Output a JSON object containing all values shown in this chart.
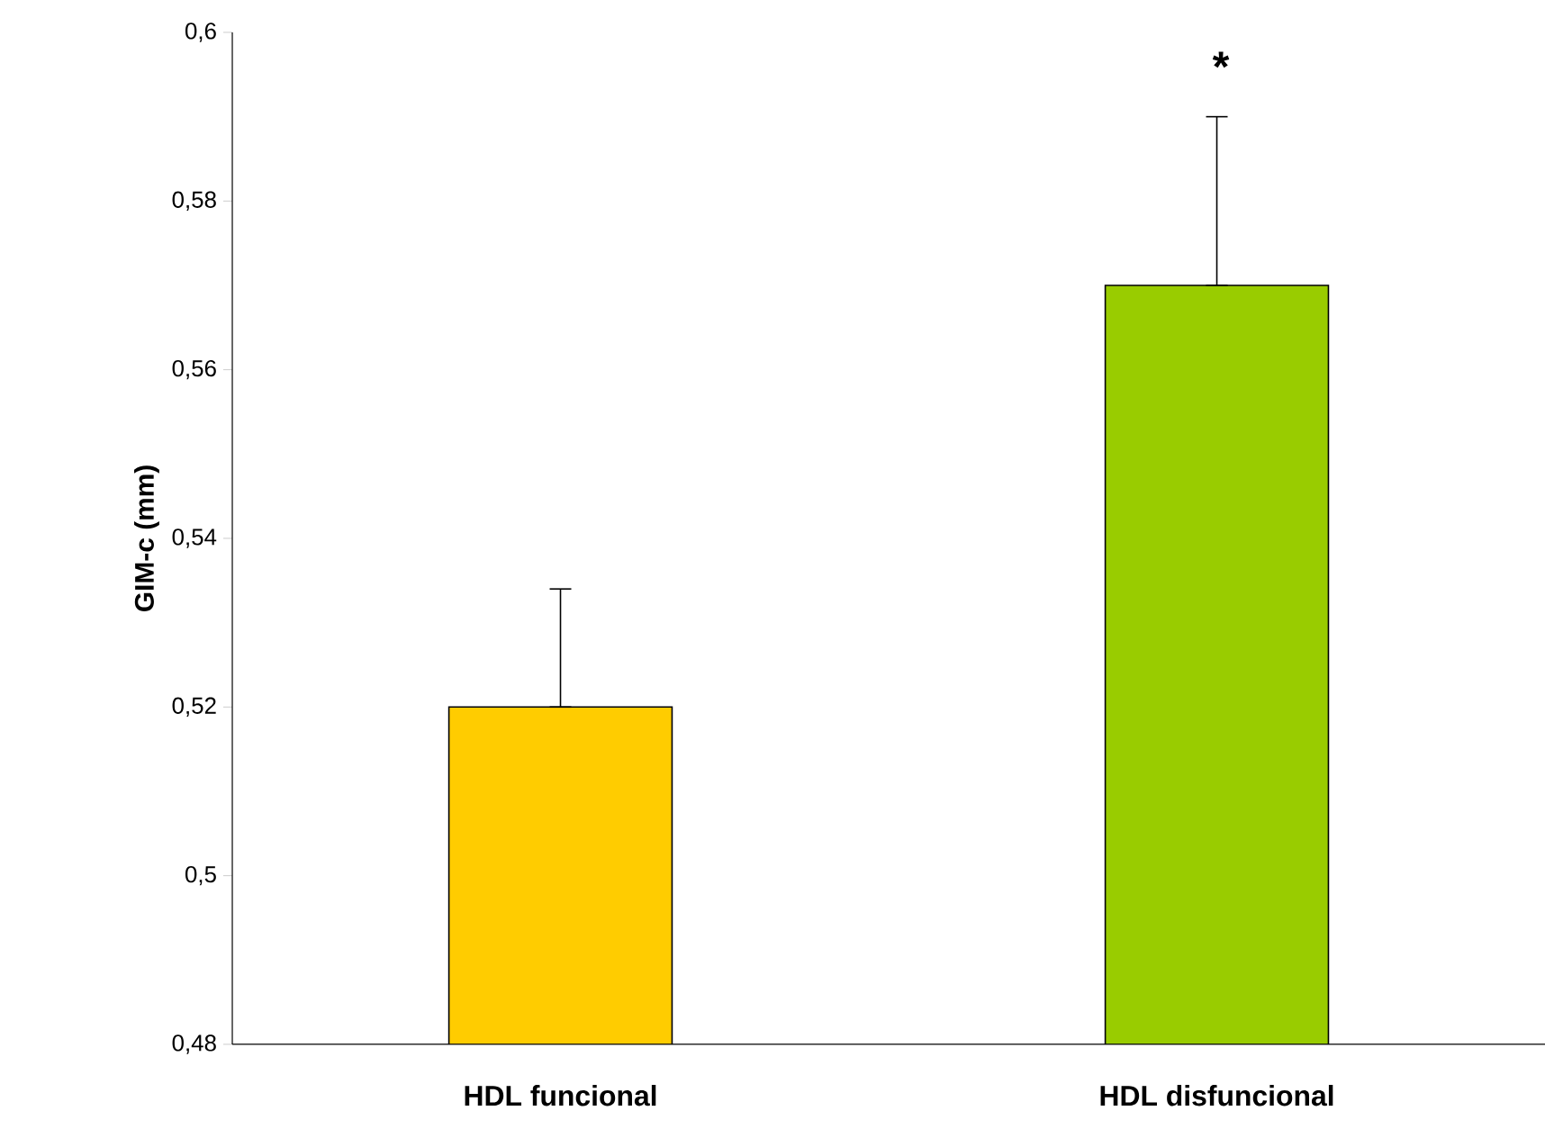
{
  "chart_data": {
    "type": "bar",
    "ylabel": "GIM-c (mm)",
    "categories": [
      "HDL funcional",
      "HDL disfuncional"
    ],
    "values": [
      0.52,
      0.57
    ],
    "colors": [
      "#ffcc00",
      "#99cc00"
    ],
    "errors": [
      [
        0.52,
        0.534
      ],
      [
        0.57,
        0.59
      ]
    ],
    "ylim": [
      0.48,
      0.6
    ],
    "yticks": [
      {
        "value": 0.48,
        "label": "0,48"
      },
      {
        "value": 0.5,
        "label": "0,5"
      },
      {
        "value": 0.52,
        "label": "0,52"
      },
      {
        "value": 0.54,
        "label": "0,54"
      },
      {
        "value": 0.56,
        "label": "0,56"
      },
      {
        "value": 0.58,
        "label": "0,58"
      },
      {
        "value": 0.6,
        "label": "0,6"
      }
    ],
    "annotations": [
      "*"
    ],
    "grid": false
  }
}
